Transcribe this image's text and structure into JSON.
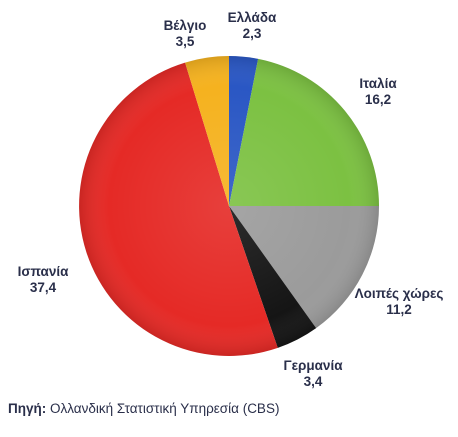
{
  "chart_data": {
    "type": "pie",
    "slices": [
      {
        "label": "Ελλάδα",
        "value_label": "2,3",
        "value": 2.3,
        "color": "#2a57c4"
      },
      {
        "label": "Ιταλία",
        "value_label": "16,2",
        "value": 16.2,
        "color": "#7cc142"
      },
      {
        "label": "Λοιπές χώρες",
        "value_label": "11,2",
        "value": 11.2,
        "color": "#9b9b9b"
      },
      {
        "label": "Γερμανία",
        "value_label": "3,4",
        "value": 3.4,
        "color": "#151515"
      },
      {
        "label": "Ισπανία",
        "value_label": "37,4",
        "value": 37.4,
        "color": "#e52a26"
      },
      {
        "label": "Βέλγιο",
        "value_label": "3,5",
        "value": 3.5,
        "color": "#f5b21f"
      }
    ],
    "start_angle_deg": 0,
    "direction": "clockwise",
    "legend": "none"
  },
  "source": {
    "prefix": "Πηγή:",
    "text": " Ολλανδική Στατιστική Υπηρεσία (CBS)"
  }
}
